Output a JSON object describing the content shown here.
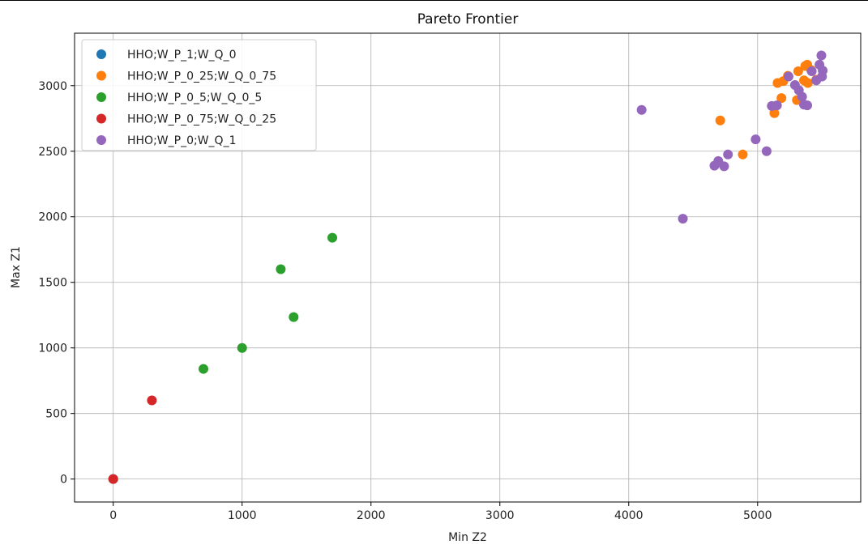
{
  "chart_data": {
    "type": "scatter",
    "title": "Pareto Frontier",
    "xlabel": "Min Z2",
    "ylabel": "Max Z1",
    "xlim": [
      -300,
      5800
    ],
    "ylim": [
      -175,
      3400
    ],
    "xticks": [
      0,
      1000,
      2000,
      3000,
      4000,
      5000
    ],
    "yticks": [
      0,
      500,
      1000,
      1500,
      2000,
      2500,
      3000
    ],
    "grid": true,
    "legend_position": "upper-left",
    "series": [
      {
        "name": "HHO;W_P_1;W_Q_0",
        "color": "#1f77b4",
        "points": [
          [
            0,
            0
          ]
        ]
      },
      {
        "name": "HHO;W_P_0_25;W_Q_0_75",
        "color": "#ff7f0e",
        "points": [
          [
            4710,
            2735
          ],
          [
            4885,
            2475
          ],
          [
            5130,
            2790
          ],
          [
            5155,
            3020
          ],
          [
            5185,
            2905
          ],
          [
            5200,
            3035
          ],
          [
            5235,
            3075
          ],
          [
            5305,
            2890
          ],
          [
            5315,
            3110
          ],
          [
            5360,
            3040
          ],
          [
            5370,
            3150
          ],
          [
            5385,
            3160
          ],
          [
            5390,
            3020
          ],
          [
            5415,
            3120
          ],
          [
            5455,
            3045
          ]
        ]
      },
      {
        "name": "HHO;W_P_0_5;W_Q_0_5",
        "color": "#2ca02c",
        "points": [
          [
            700,
            840
          ],
          [
            1000,
            1000
          ],
          [
            1300,
            1600
          ],
          [
            1400,
            1235
          ],
          [
            1700,
            1840
          ]
        ]
      },
      {
        "name": "HHO;W_P_0_75;W_Q_0_25",
        "color": "#d62728",
        "points": [
          [
            0,
            0
          ],
          [
            300,
            600
          ]
        ]
      },
      {
        "name": "HHO;W_P_0;W_Q_1",
        "color": "#9467bd",
        "points": [
          [
            4100,
            2815
          ],
          [
            4420,
            1985
          ],
          [
            4665,
            2390
          ],
          [
            4695,
            2425
          ],
          [
            4740,
            2385
          ],
          [
            4770,
            2475
          ],
          [
            4985,
            2590
          ],
          [
            5070,
            2500
          ],
          [
            5110,
            2845
          ],
          [
            5150,
            2850
          ],
          [
            5240,
            3070
          ],
          [
            5290,
            3005
          ],
          [
            5320,
            2965
          ],
          [
            5345,
            2915
          ],
          [
            5360,
            2855
          ],
          [
            5385,
            2850
          ],
          [
            5420,
            3110
          ],
          [
            5455,
            3040
          ],
          [
            5480,
            3160
          ],
          [
            5495,
            3230
          ],
          [
            5500,
            3070
          ],
          [
            5505,
            3115
          ]
        ]
      }
    ]
  }
}
